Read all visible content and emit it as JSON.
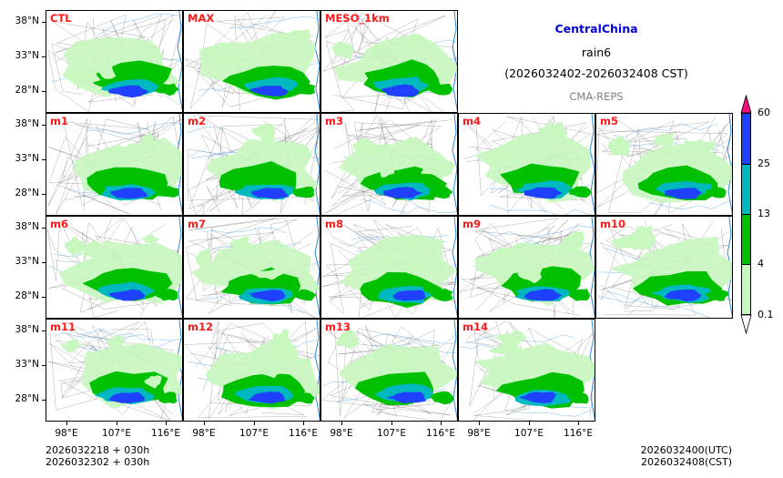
{
  "title": {
    "region": "CentralChina",
    "variable": "rain6",
    "period": "(2026032402-2026032408 CST)",
    "source": "CMA-REPS"
  },
  "panels": [
    {
      "label": "CTL",
      "row": 0,
      "col": 0
    },
    {
      "label": "MAX",
      "row": 0,
      "col": 1
    },
    {
      "label": "MESO_1km",
      "row": 0,
      "col": 2
    },
    {
      "label": "m1",
      "row": 1,
      "col": 0
    },
    {
      "label": "m2",
      "row": 1,
      "col": 1
    },
    {
      "label": "m3",
      "row": 1,
      "col": 2
    },
    {
      "label": "m4",
      "row": 1,
      "col": 3
    },
    {
      "label": "m5",
      "row": 1,
      "col": 4
    },
    {
      "label": "m6",
      "row": 2,
      "col": 0
    },
    {
      "label": "m7",
      "row": 2,
      "col": 1
    },
    {
      "label": "m8",
      "row": 2,
      "col": 2
    },
    {
      "label": "m9",
      "row": 2,
      "col": 3
    },
    {
      "label": "m10",
      "row": 2,
      "col": 4
    },
    {
      "label": "m11",
      "row": 3,
      "col": 0
    },
    {
      "label": "m12",
      "row": 3,
      "col": 1
    },
    {
      "label": "m13",
      "row": 3,
      "col": 2
    },
    {
      "label": "m14",
      "row": 3,
      "col": 3
    }
  ],
  "axes": {
    "lat_labels": [
      "38°N",
      "33°N",
      "28°N"
    ],
    "lon_labels": [
      "98°E",
      "107°E",
      "116°E"
    ]
  },
  "colorbar": {
    "levels": [
      "0.1",
      "4",
      "13",
      "25",
      "60"
    ],
    "colors": [
      "#c8f7c0",
      "#00c000",
      "#00b8c0",
      "#2040ff",
      "#ee1177"
    ]
  },
  "footer": {
    "init_utc": "2026032218  +  030h",
    "init_cst": "2026032302  +  030h",
    "valid_utc": "2026032400(UTC)",
    "valid_cst": "2026032408(CST)"
  }
}
